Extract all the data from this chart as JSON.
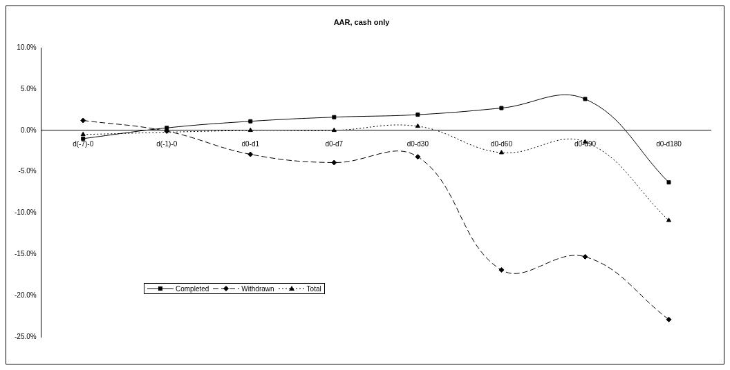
{
  "chart_data": {
    "type": "line",
    "title": "AAR, cash only",
    "categories": [
      "d(-7)-0",
      "d(-1)-0",
      "d0-d1",
      "d0-d7",
      "d0-d30",
      "d0-d60",
      "d0-d90",
      "d0-d180"
    ],
    "series": [
      {
        "name": "Completed",
        "color": "#000000",
        "marker": "square",
        "line_style": "solid",
        "values": [
          -1.0,
          0.3,
          1.1,
          1.6,
          1.9,
          2.7,
          3.8,
          -6.3
        ]
      },
      {
        "name": "Withdrawn",
        "color": "#000000",
        "marker": "diamond",
        "line_style": "dashed",
        "values": [
          1.2,
          -0.1,
          -2.9,
          -3.9,
          -3.2,
          -16.9,
          -15.3,
          -22.9
        ]
      },
      {
        "name": "Total",
        "color": "#000000",
        "marker": "triangle",
        "line_style": "dotted",
        "values": [
          -0.5,
          null,
          0.0,
          0.0,
          0.5,
          -2.7,
          -1.4,
          -10.9
        ]
      }
    ],
    "ylim": [
      -25,
      10
    ],
    "yticks": [
      {
        "value": -25,
        "label": "-25.0%"
      },
      {
        "value": -20,
        "label": "-20.0%"
      },
      {
        "value": -15,
        "label": "-15.0%"
      },
      {
        "value": -10,
        "label": "-10.0%"
      },
      {
        "value": -5,
        "label": "-5.0%"
      },
      {
        "value": 0,
        "label": "0.0%"
      },
      {
        "value": 5,
        "label": "5.0%"
      },
      {
        "value": 10,
        "label": "10.0%"
      }
    ],
    "grid": false,
    "legend": "bottom left"
  }
}
